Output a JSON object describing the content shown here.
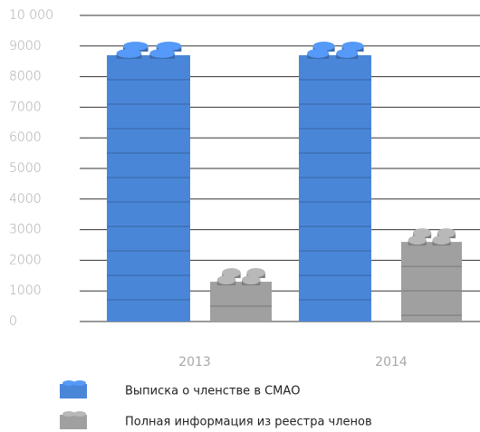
{
  "chart_data": {
    "type": "bar",
    "categories": [
      "2013",
      "2014"
    ],
    "series": [
      {
        "name": "Выписка о членстве в СМАО",
        "color": "#4a86d8",
        "values": [
          8700,
          8700
        ]
      },
      {
        "name": "Полная информация из реестра членов",
        "color": "#a0a0a0",
        "values": [
          1300,
          2600
        ]
      }
    ],
    "ylim": [
      0,
      10000
    ],
    "yticks": [
      0,
      1000,
      2000,
      3000,
      4000,
      5000,
      6000,
      7000,
      8000,
      9000,
      {
        "value": 10000,
        "label": "10 000"
      }
    ],
    "grid": true
  }
}
